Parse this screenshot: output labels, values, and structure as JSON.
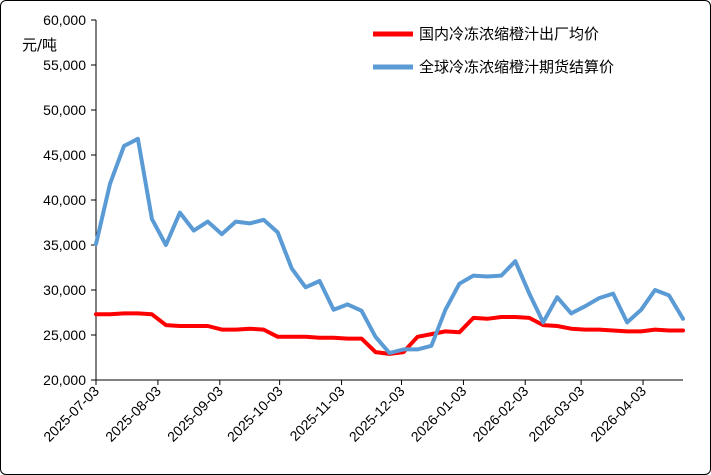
{
  "chart_data": {
    "type": "line",
    "ylabel": "元/吨",
    "ylim": [
      20000,
      60000
    ],
    "y_ticks": [
      "20,000",
      "25,000",
      "30,000",
      "35,000",
      "40,000",
      "45,000",
      "50,000",
      "55,000",
      "60,000"
    ],
    "x_tick_labels": [
      "2025-07-03",
      "2025-08-03",
      "2025-09-03",
      "2025-10-03",
      "2025-11-03",
      "2025-12-03",
      "2026-01-03",
      "2026-02-03",
      "2026-03-03",
      "2026-04-03"
    ],
    "x_tick_weeks": [
      0,
      4.43,
      8.86,
      13.14,
      17.57,
      21.86,
      26.29,
      30.71,
      34.71,
      39.14
    ],
    "grid": false,
    "legend_position": "top-right",
    "series": [
      {
        "name": "国内冷冻浓缩橙汁出厂均价",
        "color": "#ff0000",
        "values": [
          27300,
          27300,
          27400,
          27400,
          27300,
          26100,
          26000,
          26000,
          26000,
          25600,
          25600,
          25700,
          25600,
          24800,
          24800,
          24800,
          24700,
          24700,
          24600,
          24600,
          23100,
          22900,
          23100,
          24800,
          25100,
          25400,
          25300,
          26900,
          26800,
          27000,
          27000,
          26900,
          26100,
          26000,
          25700,
          25600,
          25600,
          25500,
          25400,
          25400,
          25600,
          25500,
          25500
        ]
      },
      {
        "name": "全球冷冻浓缩橙汁期货结算价",
        "color": "#5b9bd5",
        "values": [
          35100,
          41800,
          46000,
          46800,
          37900,
          35000,
          38600,
          36600,
          37600,
          36200,
          37600,
          37400,
          37800,
          36400,
          32400,
          30300,
          31000,
          27800,
          28400,
          27700,
          24800,
          23000,
          23400,
          23400,
          23800,
          27800,
          30700,
          31600,
          31500,
          31600,
          33200,
          29600,
          26400,
          29200,
          27400,
          28200,
          29100,
          29600,
          26400,
          27800,
          30000,
          29400,
          26800
        ]
      }
    ]
  }
}
